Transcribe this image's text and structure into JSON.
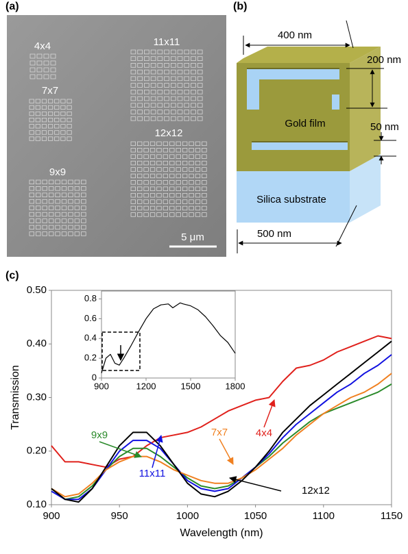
{
  "panels": {
    "a": {
      "label": "(a)",
      "array_labels": [
        "4x4",
        "11x11",
        "7x7",
        "12x12",
        "9x9"
      ],
      "scale_bar": "5 μm"
    },
    "b": {
      "label": "(b)",
      "dimensions": [
        "400 nm",
        "200 nm",
        "50 nm",
        "500 nm"
      ],
      "materials": [
        "Gold film",
        "Silica substrate"
      ]
    },
    "c": {
      "label": "(c)"
    }
  },
  "chart_data": [
    {
      "type": "line",
      "xlabel": "Wavelength (nm)",
      "ylabel": "Transmission",
      "x": [
        900,
        910,
        920,
        930,
        940,
        950,
        960,
        970,
        980,
        990,
        1000,
        1010,
        1020,
        1030,
        1040,
        1050,
        1060,
        1070,
        1080,
        1090,
        1100,
        1110,
        1120,
        1130,
        1140,
        1150
      ],
      "xlim": [
        900,
        1150
      ],
      "xticks": [
        900,
        950,
        1000,
        1050,
        1100,
        1150
      ],
      "ylim": [
        0.1,
        0.5
      ],
      "yticks": [
        {
          "value": 0.1,
          "label": "0.10"
        },
        {
          "value": 0.2,
          "label": "0.20"
        },
        {
          "value": 0.3,
          "label": "0.30"
        },
        {
          "value": 0.4,
          "label": "0.40"
        },
        {
          "value": 0.5,
          "label": "0.50"
        }
      ],
      "series": [
        {
          "name": "4x4",
          "color": "#e0201b",
          "values": [
            0.21,
            0.18,
            0.18,
            0.175,
            0.17,
            0.185,
            0.19,
            0.21,
            0.225,
            0.23,
            0.235,
            0.245,
            0.26,
            0.275,
            0.285,
            0.295,
            0.3,
            0.33,
            0.355,
            0.36,
            0.37,
            0.385,
            0.395,
            0.405,
            0.415,
            0.41
          ]
        },
        {
          "name": "9x9",
          "color": "#2a8a2a",
          "values": [
            0.13,
            0.11,
            0.115,
            0.135,
            0.165,
            0.19,
            0.205,
            0.205,
            0.19,
            0.17,
            0.15,
            0.135,
            0.13,
            0.135,
            0.15,
            0.17,
            0.19,
            0.215,
            0.235,
            0.255,
            0.27,
            0.28,
            0.29,
            0.3,
            0.31,
            0.325
          ]
        },
        {
          "name": "11x11",
          "color": "#1010e0",
          "values": [
            0.125,
            0.11,
            0.11,
            0.13,
            0.165,
            0.2,
            0.22,
            0.22,
            0.205,
            0.175,
            0.145,
            0.13,
            0.125,
            0.13,
            0.15,
            0.17,
            0.195,
            0.225,
            0.25,
            0.27,
            0.29,
            0.31,
            0.325,
            0.345,
            0.36,
            0.38
          ]
        },
        {
          "name": "7x7",
          "color": "#f08020",
          "values": [
            0.13,
            0.115,
            0.12,
            0.14,
            0.165,
            0.18,
            0.19,
            0.19,
            0.18,
            0.165,
            0.155,
            0.145,
            0.14,
            0.14,
            0.15,
            0.165,
            0.185,
            0.205,
            0.23,
            0.25,
            0.27,
            0.285,
            0.3,
            0.31,
            0.325,
            0.345
          ]
        },
        {
          "name": "12x12",
          "color": "#000000",
          "values": [
            0.13,
            0.11,
            0.105,
            0.13,
            0.17,
            0.21,
            0.235,
            0.235,
            0.21,
            0.175,
            0.14,
            0.12,
            0.115,
            0.125,
            0.145,
            0.17,
            0.2,
            0.235,
            0.26,
            0.285,
            0.305,
            0.325,
            0.345,
            0.365,
            0.385,
            0.405
          ]
        }
      ]
    },
    {
      "type": "line",
      "x": [
        900,
        930,
        960,
        990,
        1020,
        1050,
        1100,
        1150,
        1200,
        1250,
        1300,
        1350,
        1380,
        1400,
        1430,
        1450,
        1500,
        1550,
        1600,
        1650,
        1700,
        1750,
        1800
      ],
      "values": [
        0.05,
        0.2,
        0.24,
        0.15,
        0.13,
        0.2,
        0.33,
        0.47,
        0.6,
        0.7,
        0.74,
        0.75,
        0.71,
        0.73,
        0.76,
        0.75,
        0.73,
        0.69,
        0.62,
        0.53,
        0.43,
        0.36,
        0.25
      ],
      "color": "#000000",
      "xlim": [
        900,
        1800
      ],
      "xticks": [
        900,
        1200,
        1500,
        1800
      ],
      "ylim": [
        0,
        0.88
      ],
      "yticks": [
        0,
        0.2,
        0.4,
        0.6,
        0.8
      ]
    }
  ]
}
